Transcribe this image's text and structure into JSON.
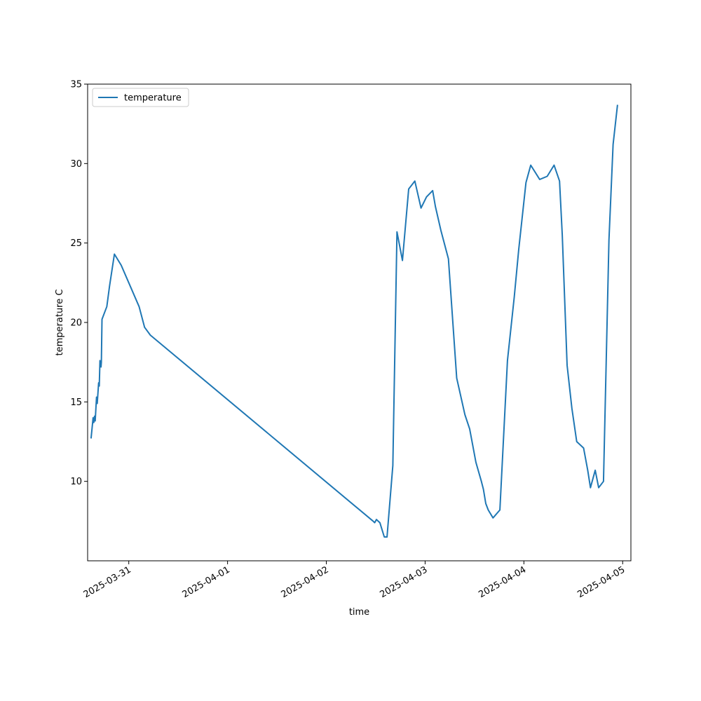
{
  "chart_data": {
    "type": "line",
    "title": "",
    "xlabel": "time",
    "ylabel": "temperature C",
    "legend": {
      "position": "top-left",
      "entries": [
        "temperature"
      ]
    },
    "grid": false,
    "xlim": [
      "2025-03-30T14:00",
      "2025-04-05T02:00"
    ],
    "ylim": [
      5.0,
      35.0
    ],
    "x_ticks": [
      "2025-03-31",
      "2025-04-01",
      "2025-04-02",
      "2025-04-03",
      "2025-04-04",
      "2025-04-05"
    ],
    "y_ticks": [
      10,
      15,
      20,
      25,
      30,
      35
    ],
    "series": [
      {
        "name": "temperature",
        "color": "#1f77b4",
        "x": [
          "2025-03-30T14:50",
          "2025-03-30T15:20",
          "2025-03-30T15:30",
          "2025-03-30T15:40",
          "2025-03-30T15:50",
          "2025-03-30T16:10",
          "2025-03-30T16:20",
          "2025-03-30T16:40",
          "2025-03-30T16:50",
          "2025-03-30T17:00",
          "2025-03-30T17:15",
          "2025-03-30T17:20",
          "2025-03-30T17:30",
          "2025-03-30T18:40",
          "2025-03-30T19:20",
          "2025-03-30T20:30",
          "2025-03-30T22:10",
          "2025-03-31T02:30",
          "2025-03-31T03:50",
          "2025-03-31T05:15",
          "2025-04-02T11:20",
          "2025-04-02T11:45",
          "2025-04-02T12:10",
          "2025-04-02T13:00",
          "2025-04-02T14:05",
          "2025-04-02T14:45",
          "2025-04-02T16:10",
          "2025-04-02T17:10",
          "2025-04-02T18:30",
          "2025-04-02T20:00",
          "2025-04-02T21:30",
          "2025-04-02T23:00",
          "2025-04-03T00:20",
          "2025-04-03T01:50",
          "2025-04-03T02:30",
          "2025-04-03T03:50",
          "2025-04-03T05:40",
          "2025-04-03T07:40",
          "2025-04-03T09:40",
          "2025-04-03T10:50",
          "2025-04-03T12:20",
          "2025-04-03T13:40",
          "2025-04-03T14:10",
          "2025-04-03T14:45",
          "2025-04-03T15:20",
          "2025-04-03T16:30",
          "2025-04-03T18:10",
          "2025-04-03T20:00",
          "2025-04-03T21:40",
          "2025-04-03T22:45",
          "2025-04-04T00:30",
          "2025-04-04T01:40",
          "2025-04-04T03:50",
          "2025-04-04T05:40",
          "2025-04-04T07:20",
          "2025-04-04T08:40",
          "2025-04-04T09:20",
          "2025-04-04T10:30",
          "2025-04-04T11:40",
          "2025-04-04T12:50",
          "2025-04-04T14:30",
          "2025-04-04T15:30",
          "2025-04-04T16:10",
          "2025-04-04T17:20",
          "2025-04-04T18:10",
          "2025-04-04T19:20",
          "2025-04-04T20:40",
          "2025-04-04T21:40",
          "2025-04-04T22:45"
        ],
        "values": [
          12.7,
          14.0,
          13.7,
          14.1,
          13.8,
          15.3,
          14.9,
          16.2,
          16.0,
          17.6,
          17.2,
          17.5,
          20.2,
          21.0,
          22.3,
          24.3,
          23.6,
          21.0,
          19.7,
          19.2,
          7.5,
          7.4,
          7.6,
          7.4,
          6.5,
          6.5,
          11.0,
          25.7,
          23.9,
          28.4,
          28.9,
          27.2,
          27.9,
          28.3,
          27.3,
          25.8,
          24.0,
          16.5,
          14.2,
          13.3,
          11.2,
          10.0,
          9.5,
          8.6,
          8.2,
          7.7,
          8.2,
          17.6,
          21.6,
          24.6,
          28.8,
          29.9,
          29.0,
          29.2,
          29.9,
          28.9,
          25.5,
          17.3,
          14.6,
          12.5,
          12.1,
          10.7,
          9.6,
          10.7,
          9.6,
          10.0,
          25.2,
          31.2,
          33.7
        ]
      }
    ]
  }
}
